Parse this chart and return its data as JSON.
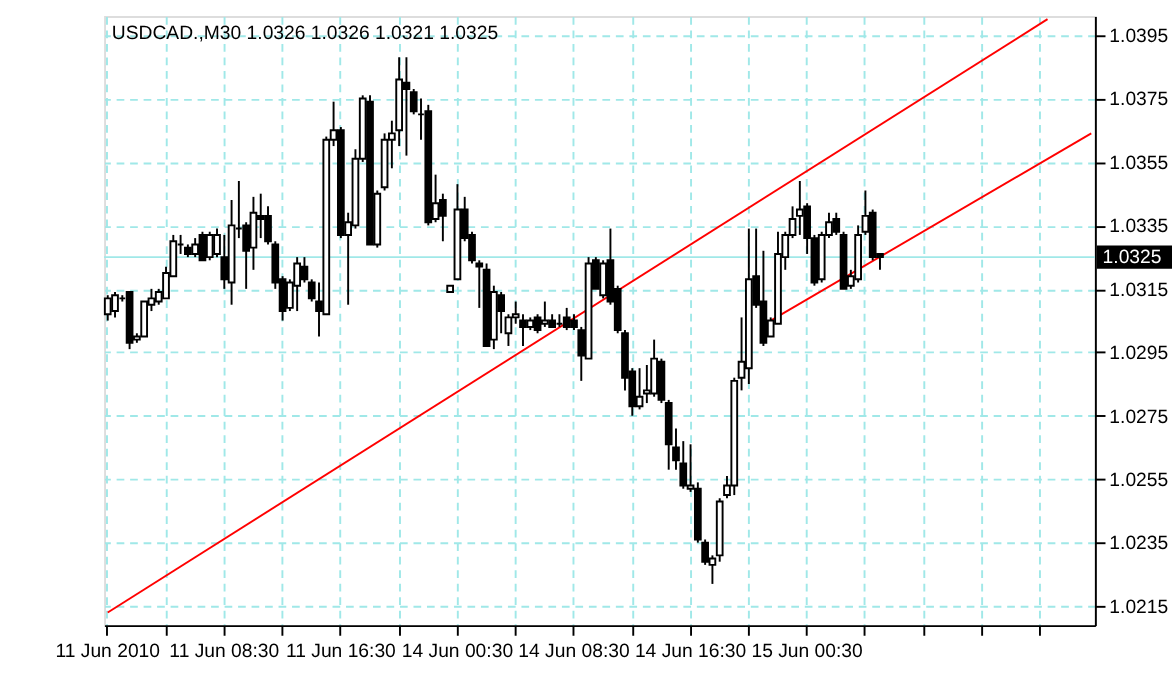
{
  "chart_data": {
    "type": "candlestick",
    "title": "USDCAD.,M30  1.0326 1.0326 1.0321 1.0325",
    "categories": [
      "11 Jun 2010",
      null,
      null,
      null,
      null,
      null,
      null,
      null,
      null,
      null,
      null,
      null,
      null,
      null,
      null,
      null,
      "11 Jun 08:30",
      null,
      null,
      null,
      null,
      null,
      null,
      null,
      null,
      null,
      null,
      null,
      null,
      null,
      null,
      null,
      "11 Jun 16:30",
      null,
      null,
      null,
      null,
      null,
      null,
      null,
      null,
      null,
      null,
      null,
      null,
      null,
      null,
      null,
      "14 Jun 00:30",
      null,
      null,
      null,
      null,
      null,
      null,
      null,
      null,
      null,
      null,
      null,
      null,
      null,
      null,
      null,
      "14 Jun 08:30",
      null,
      null,
      null,
      null,
      null,
      null,
      null,
      null,
      null,
      null,
      null,
      null,
      null,
      null,
      null,
      "14 Jun 16:30",
      null,
      null,
      null,
      null,
      null,
      null,
      null,
      null,
      null,
      null,
      null,
      null,
      null,
      null,
      null,
      "15 Jun 00:30",
      null,
      null,
      null,
      null,
      null,
      null,
      null,
      null,
      null,
      null,
      null,
      null,
      null,
      null,
      null,
      null,
      null,
      null,
      null,
      null,
      null,
      null,
      null,
      null,
      null,
      null,
      null,
      null,
      null,
      null,
      null,
      null,
      null,
      null,
      null,
      null,
      null,
      null,
      null
    ],
    "ohlc": [
      [
        1.0307,
        1.0313,
        1.0305,
        1.0312
      ],
      [
        1.0308,
        1.0314,
        1.0306,
        1.0313
      ],
      [
        1.0312,
        1.0313,
        1.0311,
        1.0312
      ],
      [
        1.0314,
        1.0314,
        1.0296,
        1.0298
      ],
      [
        1.0299,
        1.0301,
        1.0298,
        1.03
      ],
      [
        1.03,
        1.0311,
        1.03,
        1.0311
      ],
      [
        1.031,
        1.0315,
        1.0308,
        1.0312
      ],
      [
        1.0311,
        1.0315,
        1.031,
        1.0314
      ],
      [
        1.0312,
        1.0322,
        1.0312,
        1.032
      ],
      [
        1.0319,
        1.0332,
        1.0319,
        1.033
      ],
      [
        1.0329,
        1.0332,
        1.0326,
        1.0329
      ],
      [
        1.0328,
        1.0329,
        1.0325,
        1.0326
      ],
      [
        1.0326,
        1.0331,
        1.0325,
        1.0329
      ],
      [
        1.0332,
        1.0333,
        1.0324,
        1.0324
      ],
      [
        1.0325,
        1.0333,
        1.0324,
        1.0332
      ],
      [
        1.0326,
        1.0334,
        1.0325,
        1.0332
      ],
      [
        1.0325,
        1.0332,
        1.0315,
        1.0318
      ],
      [
        1.0317,
        1.0343,
        1.031,
        1.0335
      ],
      [
        1.0334,
        1.0349,
        1.0331,
        1.0334
      ],
      [
        1.0335,
        1.0336,
        1.0315,
        1.0327
      ],
      [
        1.0328,
        1.0344,
        1.0321,
        1.0339
      ],
      [
        1.0338,
        1.0345,
        1.0331,
        1.0337
      ],
      [
        1.0338,
        1.0341,
        1.0329,
        1.033
      ],
      [
        1.0329,
        1.033,
        1.0315,
        1.0317
      ],
      [
        1.0318,
        1.0319,
        1.0305,
        1.0308
      ],
      [
        1.0309,
        1.0318,
        1.0308,
        1.0317
      ],
      [
        1.0316,
        1.0325,
        1.0308,
        1.0323
      ],
      [
        1.0322,
        1.0325,
        1.0317,
        1.0318
      ],
      [
        1.0317,
        1.0318,
        1.0311,
        1.0312
      ],
      [
        1.0311,
        1.0317,
        1.03,
        1.0308
      ],
      [
        1.0307,
        1.0363,
        1.0307,
        1.0362
      ],
      [
        1.0362,
        1.0374,
        1.036,
        1.0365
      ],
      [
        1.0365,
        1.0366,
        1.0331,
        1.0332
      ],
      [
        1.0332,
        1.0339,
        1.031,
        1.0336
      ],
      [
        1.0335,
        1.0359,
        1.0334,
        1.0356
      ],
      [
        1.0356,
        1.0376,
        1.0355,
        1.0375
      ],
      [
        1.0374,
        1.0376,
        1.0329,
        1.0329
      ],
      [
        1.0329,
        1.0346,
        1.0328,
        1.0345
      ],
      [
        1.0347,
        1.0364,
        1.0346,
        1.0362
      ],
      [
        1.0362,
        1.0368,
        1.0353,
        1.0364
      ],
      [
        1.0365,
        1.0388,
        1.036,
        1.0381
      ],
      [
        1.038,
        1.0388,
        1.0357,
        1.0378
      ],
      [
        1.0377,
        1.0378,
        1.037,
        1.0371
      ],
      [
        1.037,
        1.0375,
        1.0362,
        1.037
      ],
      [
        1.0371,
        1.0373,
        1.0335,
        1.0336
      ],
      [
        1.0337,
        1.0351,
        1.0336,
        1.0342
      ],
      [
        1.0343,
        1.0345,
        1.033,
        1.0338
      ],
      [
        1.0314,
        1.0316,
        1.0314,
        1.0316
      ],
      [
        1.0318,
        1.0348,
        1.0318,
        1.034
      ],
      [
        1.034,
        1.0344,
        1.033,
        1.0331
      ],
      [
        1.0332,
        1.0333,
        1.0323,
        1.0324
      ],
      [
        1.0323,
        1.0324,
        1.0309,
        1.0322
      ],
      [
        1.0321,
        1.0323,
        1.0297,
        1.0297
      ],
      [
        1.0299,
        1.0316,
        1.0296,
        1.0314
      ],
      [
        1.0313,
        1.0314,
        1.0301,
        1.0308
      ],
      [
        1.0301,
        1.0307,
        1.0297,
        1.0306
      ],
      [
        1.0306,
        1.0311,
        1.0304,
        1.0307
      ],
      [
        1.0305,
        1.0307,
        1.0297,
        1.0303
      ],
      [
        1.0303,
        1.0306,
        1.0302,
        1.0305
      ],
      [
        1.0306,
        1.0307,
        1.0301,
        1.0302
      ],
      [
        1.0304,
        1.0311,
        1.0303,
        1.0305
      ],
      [
        1.0305,
        1.0307,
        1.0303,
        1.0303
      ],
      [
        1.0304,
        1.0307,
        1.0303,
        1.0304
      ],
      [
        1.0306,
        1.0309,
        1.0302,
        1.0303
      ],
      [
        1.0305,
        1.0307,
        1.0302,
        1.0303
      ],
      [
        1.0302,
        1.0303,
        1.0286,
        1.0294
      ],
      [
        1.0293,
        1.0325,
        1.0293,
        1.0323
      ],
      [
        1.0324,
        1.0325,
        1.0315,
        1.0315
      ],
      [
        1.0313,
        1.0324,
        1.0312,
        1.0323
      ],
      [
        1.0324,
        1.0334,
        1.031,
        1.0311
      ],
      [
        1.0315,
        1.0316,
        1.0301,
        1.0302
      ],
      [
        1.0301,
        1.0302,
        1.0283,
        1.0287
      ],
      [
        1.0289,
        1.029,
        1.0275,
        1.0278
      ],
      [
        1.0278,
        1.029,
        1.0277,
        1.0281
      ],
      [
        1.0282,
        1.0291,
        1.0279,
        1.0283
      ],
      [
        1.0282,
        1.0299,
        1.0281,
        1.0293
      ],
      [
        1.0292,
        1.0293,
        1.0279,
        1.028
      ],
      [
        1.0279,
        1.028,
        1.0258,
        1.0266
      ],
      [
        1.0265,
        1.0271,
        1.0258,
        1.0261
      ],
      [
        1.026,
        1.0267,
        1.0252,
        1.0253
      ],
      [
        1.0252,
        1.0266,
        1.0251,
        1.0253
      ],
      [
        1.0252,
        1.0254,
        1.0235,
        1.0236
      ],
      [
        1.0235,
        1.0236,
        1.0228,
        1.0229
      ],
      [
        1.0228,
        1.0231,
        1.0222,
        1.023
      ],
      [
        1.0231,
        1.0249,
        1.0229,
        1.0248
      ],
      [
        1.025,
        1.0256,
        1.0249,
        1.0253
      ],
      [
        1.0253,
        1.0287,
        1.025,
        1.0286
      ],
      [
        1.0287,
        1.0306,
        1.0283,
        1.0292
      ],
      [
        1.029,
        1.0334,
        1.0285,
        1.0318
      ],
      [
        1.0319,
        1.0334,
        1.0309,
        1.031
      ],
      [
        1.0311,
        1.0327,
        1.0297,
        1.0298
      ],
      [
        1.03,
        1.0306,
        1.03,
        1.0305
      ],
      [
        1.0304,
        1.0333,
        1.0304,
        1.0326
      ],
      [
        1.0325,
        1.0333,
        1.0321,
        1.0332
      ],
      [
        1.0332,
        1.0341,
        1.0331,
        1.0337
      ],
      [
        1.0338,
        1.0349,
        1.0332,
        1.034
      ],
      [
        1.0341,
        1.0342,
        1.0326,
        1.0331
      ],
      [
        1.0331,
        1.0332,
        1.0316,
        1.0317
      ],
      [
        1.0318,
        1.0333,
        1.0317,
        1.0332
      ],
      [
        1.0332,
        1.0339,
        1.0331,
        1.0336
      ],
      [
        1.0337,
        1.0339,
        1.0332,
        1.0333
      ],
      [
        1.0332,
        1.0333,
        1.0315,
        1.0315
      ],
      [
        1.0316,
        1.0321,
        1.0315,
        1.0319
      ],
      [
        1.0318,
        1.0335,
        1.0317,
        1.0332
      ],
      [
        1.0333,
        1.0346,
        1.0332,
        1.0338
      ],
      [
        1.0339,
        1.034,
        1.0324,
        1.0325
      ],
      [
        1.0326,
        1.0326,
        1.0321,
        1.0325
      ],
      null,
      null,
      null,
      null,
      null,
      null,
      null,
      null,
      null,
      null,
      null,
      null,
      null,
      null,
      null,
      null,
      null,
      null,
      null,
      null,
      null,
      null,
      null,
      null,
      null,
      null,
      null,
      null,
      null
    ],
    "series": [
      {
        "type": "line",
        "color": "#ff0000",
        "values": [
          1.0213,
          null,
          null,
          null,
          null,
          null,
          null,
          null,
          null,
          null,
          null,
          null,
          null,
          null,
          null,
          null,
          null,
          null,
          null,
          null,
          null,
          null,
          null,
          null,
          null,
          null,
          null,
          null,
          null,
          null,
          null,
          null,
          null,
          null,
          null,
          null,
          null,
          null,
          null,
          null,
          null,
          null,
          null,
          null,
          null,
          null,
          null,
          null,
          null,
          null,
          null,
          null,
          null,
          null,
          null,
          null,
          null,
          null,
          null,
          null,
          null,
          null,
          null,
          null,
          null,
          null,
          null,
          null,
          null,
          null,
          null,
          null,
          null,
          null,
          null,
          null,
          null,
          null,
          null,
          null,
          null,
          null,
          null,
          null,
          null,
          null,
          null,
          null,
          null,
          null,
          null,
          null,
          null,
          null,
          null,
          null,
          null,
          null,
          null,
          null,
          null,
          null,
          null,
          null,
          null,
          null,
          null,
          null,
          null,
          null,
          null,
          null,
          null,
          null,
          null,
          null,
          null,
          null,
          null,
          null,
          null,
          null,
          null,
          null,
          null,
          null,
          null,
          null,
          null,
          1.04,
          null,
          null,
          null,
          null,
          null,
          null
        ]
      },
      {
        "type": "line",
        "color": "#ff0000",
        "values": [
          null,
          null,
          null,
          null,
          null,
          null,
          null,
          null,
          null,
          null,
          null,
          null,
          null,
          null,
          null,
          null,
          null,
          null,
          null,
          null,
          null,
          null,
          null,
          null,
          null,
          null,
          null,
          null,
          null,
          null,
          null,
          null,
          null,
          null,
          null,
          null,
          null,
          null,
          null,
          null,
          null,
          null,
          null,
          null,
          null,
          null,
          null,
          null,
          null,
          null,
          null,
          null,
          null,
          null,
          null,
          null,
          null,
          null,
          null,
          null,
          null,
          null,
          null,
          null,
          null,
          null,
          null,
          null,
          null,
          null,
          null,
          null,
          null,
          null,
          null,
          null,
          null,
          null,
          null,
          null,
          null,
          null,
          null,
          null,
          null,
          null,
          null,
          null,
          null,
          null,
          null,
          1.0305,
          null,
          null,
          null,
          null,
          null,
          null,
          null,
          null,
          null,
          null,
          null,
          null,
          null,
          null,
          null,
          null,
          null,
          null,
          null,
          null,
          null,
          null,
          null,
          null,
          null,
          null,
          null,
          null,
          null,
          null,
          null,
          null,
          null,
          null,
          null,
          null,
          null,
          null,
          null,
          null,
          null,
          null,
          null,
          1.0364
        ]
      }
    ],
    "ylim": [
      1.0209,
      1.0401
    ],
    "yticks": [
      1.0215,
      1.0235,
      1.0255,
      1.0275,
      1.0295,
      1.0315,
      1.0335,
      1.0355,
      1.0375,
      1.0395
    ],
    "grid": true,
    "ref_lines": [
      {
        "axis": "y",
        "value": 1.0325,
        "label": "1.0325",
        "color": "#a0e8e8"
      }
    ]
  }
}
